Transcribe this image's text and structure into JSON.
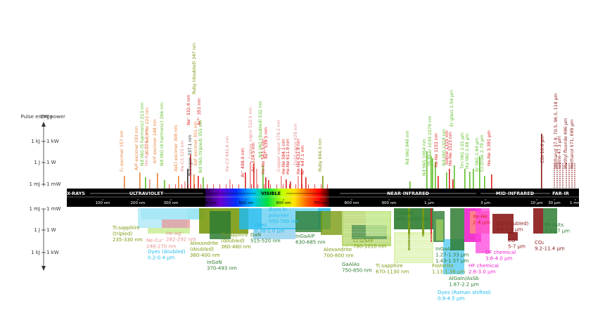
{
  "axis": {
    "top_header": [
      "Pulse energy",
      "CW power"
    ],
    "top_rows": [
      {
        "energy": "1 kJ",
        "power": "1 kW"
      },
      {
        "energy": "1 J",
        "power": "1 W"
      },
      {
        "energy": "1 mJ",
        "power": "1 mW"
      }
    ],
    "bottom_rows": [
      {
        "energy": "1 mJ",
        "power": "1 mW"
      },
      {
        "energy": "1 J",
        "power": "1 W"
      },
      {
        "energy": "1 kJ",
        "power": "1 kW"
      }
    ]
  },
  "bands": [
    {
      "name": "xrays",
      "label": "X-RAYS",
      "color": "#000000"
    },
    {
      "name": "ultraviolet",
      "label": "ULTRAVIOLET",
      "color": "#000000"
    },
    {
      "name": "visible",
      "label": "VISIBLE",
      "color": "#000000"
    },
    {
      "name": "nearinfrared",
      "label": "NEAR-INFRARED",
      "color": "#000000"
    },
    {
      "name": "midinfrared",
      "label": "MID-INFRARED",
      "color": "#000000"
    },
    {
      "name": "farir",
      "label": "FAR-IR",
      "color": "#000000"
    }
  ],
  "ticks": [
    "100 nm",
    "200 nm",
    "300 nm",
    "400 nm",
    "500 nm",
    "600 nm",
    "700 nm",
    "800 nm",
    "900 nm",
    "1 µm",
    "3 µm",
    "10 µm",
    "30 µm",
    "1 mm"
  ],
  "top_labels": [
    {
      "text": "F₂ excimer  157 nm",
      "color": "#e8823a"
    },
    {
      "text": "ArF excimer  193 nm",
      "color": "#e8823a"
    },
    {
      "text": "Nd:YAG (5 harmonic)  213 nm",
      "color": "#5fbf2a"
    },
    {
      "text": "He-Ag⁺  224.3 nm",
      "color": "#e89090"
    },
    {
      "text": "KrCl excimer  222 nm",
      "color": "#e8823a"
    },
    {
      "text": "KrF excimer  248 nm",
      "color": "#e8823a"
    },
    {
      "text": "Nd:YAG (4 harmonic)  266 nm",
      "color": "#5fbf2a"
    },
    {
      "text": "XeCl excimer  308 nm",
      "color": "#e8823a"
    },
    {
      "text": "He-Cd  325 nm",
      "color": "#e89090"
    },
    {
      "text": "Nitrogen  337.1 nm",
      "color": "#333333"
    },
    {
      "text": "XeF excimer  351 nm",
      "color": "#e8823a"
    },
    {
      "text": "Nd:YAG (tripled)  355 nm",
      "color": "#5fbf2a"
    },
    {
      "text": "Ne⁺  332.4 nm",
      "color": "#dd2222"
    },
    {
      "text": "Ruby (doubled)  347 nm",
      "color": "#7a9a10"
    },
    {
      "text": "Ar³⁺  351 nm",
      "color": "#dd2222"
    },
    {
      "text": "He-Cd  441.6 nm",
      "color": "#e89090"
    },
    {
      "text": "Ar⁺  488.0 nm",
      "color": "#dd2222"
    },
    {
      "text": "Copper vapor  510.5 nm",
      "color": "#e89090"
    },
    {
      "text": "Ar⁺  514.5 nm",
      "color": "#dd2222"
    },
    {
      "text": "Nd:YAG (doubled)  532 nm",
      "color": "#5fbf2a"
    },
    {
      "text": "He-Ne  543.5 nm",
      "color": "#dd2222"
    },
    {
      "text": "Xe³⁺  539.5 nm",
      "color": "#dd2222"
    },
    {
      "text": "Copper vapor  578.2 nm",
      "color": "#e89090"
    },
    {
      "text": "He-Ne  594.1 nm",
      "color": "#dd2222"
    },
    {
      "text": "He-Ne  611.9 nm",
      "color": "#dd2222"
    },
    {
      "text": "Gold vapor  628 nm",
      "color": "#e89090"
    },
    {
      "text": "He-Ne  632.8 nm",
      "color": "#dd2222"
    },
    {
      "text": "Kr⁺  647.1 nm",
      "color": "#dd2222"
    },
    {
      "text": "Ruby  694.3 nm",
      "color": "#7a9a10"
    },
    {
      "text": "Nd:YAG  946 nm",
      "color": "#5fbf2a"
    },
    {
      "text": "Nd:YAG  1064 nm",
      "color": "#5fbf2a"
    },
    {
      "text": "Yb:fiber  1030-1079 nm",
      "color": "#5fbf2a"
    },
    {
      "text": "He-Ne  1152 nm",
      "color": "#dd2222"
    },
    {
      "text": "Nd:YAG  1319 nm",
      "color": "#5fbf2a"
    },
    {
      "text": "Iodine  1315 nm",
      "color": "#dd2222"
    },
    {
      "text": "He-Ne  1523 nm",
      "color": "#dd2222"
    },
    {
      "text": "Er:glass  1.54 µm",
      "color": "#5fbf2a"
    },
    {
      "text": "Tm:YAG  2.01 µm",
      "color": "#5fbf2a"
    },
    {
      "text": "Ho:YAG  2.08 µm",
      "color": "#5fbf2a"
    },
    {
      "text": "Er:YAG  2.94 µm",
      "color": "#5fbf2a"
    },
    {
      "text": "Cr:ZnSe  2.79 µm",
      "color": "#5fbf2a"
    },
    {
      "text": "He-Ne  3.391 µm",
      "color": "#dd2222"
    },
    {
      "text": "CO₂  10.6 µm",
      "color": "#8b1a1a"
    },
    {
      "text": "Methanol  37.9, 70.5, 96.5, 118 µm",
      "color": "#8b1a1a"
    },
    {
      "text": "Iodine  47.3 µm",
      "color": "#8b1a1a"
    },
    {
      "text": "Methyl fluoride  496 µm",
      "color": "#8b1a1a"
    },
    {
      "text": "Methanol  571, 699 µm",
      "color": "#8b1a1a"
    }
  ],
  "bottom_labels": [
    {
      "id": "tisapph-tripled",
      "lines": [
        "Ti:sapphire",
        "(tripled)",
        "235-330 nm"
      ],
      "color": "#7a9a10"
    },
    {
      "id": "necu",
      "lines": [
        "Ne-Cu⁺",
        "248-270 nm"
      ],
      "color": "#e89090"
    },
    {
      "id": "heag",
      "lines": [
        "He-Ag⁺",
        "282-292 nm"
      ],
      "color": "#e89090"
    },
    {
      "id": "dyes-doubled",
      "lines": [
        "Dyes (doubled)",
        "0.2-0.4 µm"
      ],
      "color": "#22bbee"
    },
    {
      "id": "alexandrite-doubled",
      "lines": [
        "Alexandrite",
        "(doubled)",
        "360-400 nm"
      ],
      "color": "#7a9a10"
    },
    {
      "id": "ingan",
      "lines": [
        "InGaN",
        "370-493 nm"
      ],
      "color": "#2e7d32"
    },
    {
      "id": "tisapph-doubled",
      "lines": [
        "Ti:sapphire",
        "(doubled)",
        "360-460 nm"
      ],
      "color": "#7a9a10"
    },
    {
      "id": "dyes",
      "lines": [
        "Dyes",
        "0.38-1.0 µm"
      ],
      "color": "#22bbee"
    },
    {
      "id": "dyes-polymer",
      "lines": [
        "Dyes in",
        "polymer",
        "550-700 nm"
      ],
      "color": "#22bbee"
    },
    {
      "id": "gan",
      "lines": [
        "GaN",
        "515-520 nm"
      ],
      "color": "#2e7d32"
    },
    {
      "id": "ingaalp",
      "lines": [
        "InGaAlP",
        "630-685 nm"
      ],
      "color": "#2e7d32"
    },
    {
      "id": "alexandrite",
      "lines": [
        "Alexandrite",
        "700-800 nm"
      ],
      "color": "#7a9a10"
    },
    {
      "id": "crlisaf",
      "lines": [
        "Cr:LiSAF",
        "780-1010 nm"
      ],
      "color": "#7a9a10"
    },
    {
      "id": "gaalas",
      "lines": [
        "GaAlAs",
        "750-850 nm"
      ],
      "color": "#2e7d32"
    },
    {
      "id": "tisapphire",
      "lines": [
        "Ti:sapphire",
        "670-1130 nm"
      ],
      "color": "#7a9a10"
    },
    {
      "id": "ingaas",
      "lines": [
        "InGaAs",
        "904-1065 nm"
      ],
      "color": "#2e7d32"
    },
    {
      "id": "ingaas2",
      "lines": [
        "InGaAs",
        "1.27-1.33 µm",
        "1.43-1.57 µm"
      ],
      "color": "#2e7d32"
    },
    {
      "id": "forsterite",
      "lines": [
        "Fosterite",
        "1.13-1.36 µm"
      ],
      "color": "#7a9a10"
    },
    {
      "id": "algainassb",
      "lines": [
        "AlGaIn/AsSb",
        "1.87-2.2 µm"
      ],
      "color": "#2e7d32"
    },
    {
      "id": "dyes-raman",
      "lines": [
        "Dyes (Raman shifted)",
        "0.9-4.5 µm"
      ],
      "color": "#22bbee"
    },
    {
      "id": "xene",
      "lines": [
        "Xe-He",
        "2-4 µm"
      ],
      "color": "#dd2222"
    },
    {
      "id": "df",
      "lines": [
        "DF chemical",
        "3.6-4.0 µm"
      ],
      "color": "#ee22cc"
    },
    {
      "id": "hf",
      "lines": [
        "HF chemical",
        "2.6-3.0 µm"
      ],
      "color": "#ee22cc"
    },
    {
      "id": "co-doubled",
      "lines": [
        "CO (doubled)",
        "4.6-5.8 µm"
      ],
      "color": "#8b1a1a"
    },
    {
      "id": "co",
      "lines": [
        "CO",
        "5-7 µm"
      ],
      "color": "#8b1a1a"
    },
    {
      "id": "co2",
      "lines": [
        "CO₂",
        "9.2-11.4 µm"
      ],
      "color": "#8b1a1a"
    },
    {
      "id": "pbsalts",
      "lines": [
        "Pb salts",
        "3.3-27 µm"
      ],
      "color": "#2e7d32"
    }
  ]
}
